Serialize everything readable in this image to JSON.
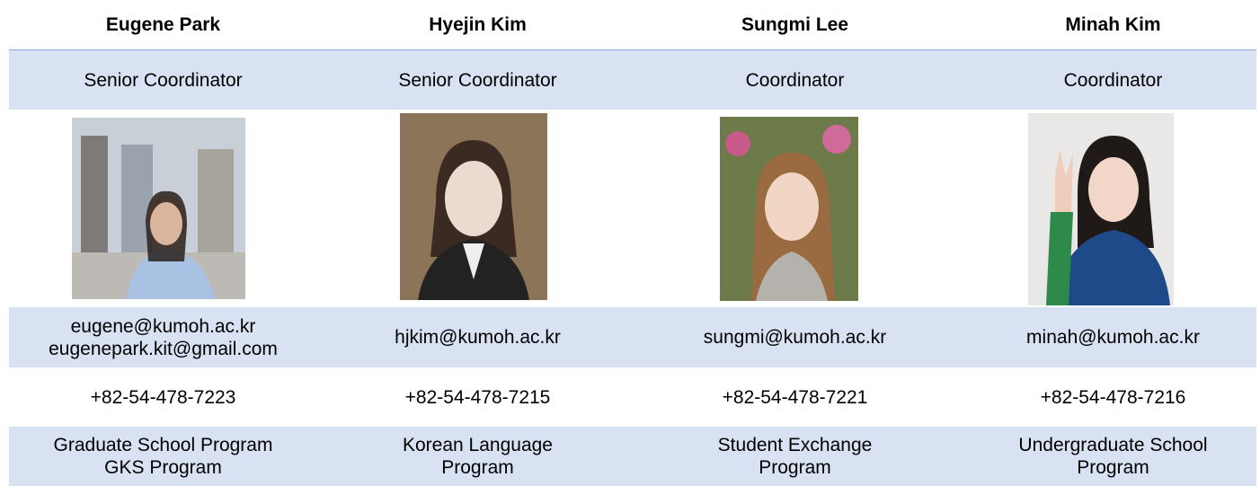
{
  "people": [
    {
      "name": "Eugene Park",
      "role": "Senior Coordinator",
      "email": [
        "eugene@kumoh.ac.kr",
        "eugenepark.kit@gmail.com"
      ],
      "phone": "+82-54-478-7223",
      "program": [
        "Graduate School Program",
        "GKS Program"
      ]
    },
    {
      "name": "Hyejin Kim",
      "role": "Senior Coordinator",
      "email": [
        "hjkim@kumoh.ac.kr"
      ],
      "phone": "+82-54-478-7215",
      "program": [
        "Korean Language",
        "Program"
      ]
    },
    {
      "name": "Sungmi Lee",
      "role": "Coordinator",
      "email": [
        "sungmi@kumoh.ac.kr"
      ],
      "phone": "+82-54-478-7221",
      "program": [
        "Student Exchange",
        "Program"
      ]
    },
    {
      "name": "Minah Kim",
      "role": "Coordinator",
      "email": [
        "minah@kumoh.ac.kr"
      ],
      "phone": "+82-54-478-7216",
      "program": [
        "Undergraduate School",
        "Program"
      ]
    }
  ]
}
